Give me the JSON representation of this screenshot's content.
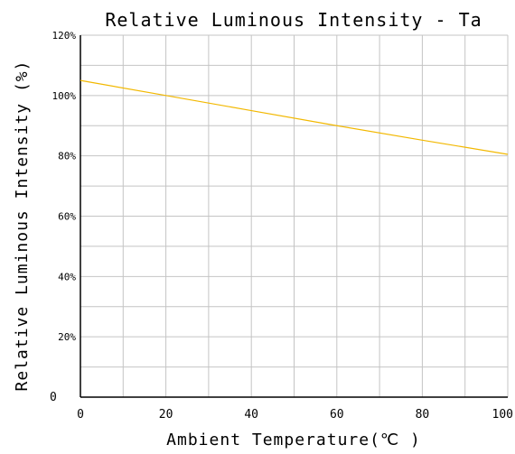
{
  "chart_data": {
    "type": "line",
    "title": "Relative Luminous Intensity - Ta",
    "xlabel": "Ambient Temperature(℃ )",
    "ylabel": "Relative Luminous Intensity (%)",
    "xlim": [
      0,
      100
    ],
    "ylim": [
      0,
      120
    ],
    "x_ticks": [
      0,
      10,
      20,
      30,
      40,
      50,
      60,
      70,
      80,
      90,
      100
    ],
    "x_tick_labels": [
      "0",
      "",
      "20",
      "",
      "40",
      "",
      "60",
      "",
      "80",
      "",
      "100"
    ],
    "y_ticks": [
      0,
      10,
      20,
      30,
      40,
      50,
      60,
      70,
      80,
      90,
      100,
      110,
      120
    ],
    "y_tick_labels": [
      "0",
      "",
      "20%",
      "",
      "40%",
      "",
      "60%",
      "",
      "80%",
      "",
      "100%",
      "",
      "120%"
    ],
    "grid": true,
    "series": [
      {
        "color": "#f2b800",
        "x": [
          0,
          20,
          40,
          60,
          80,
          100
        ],
        "y": [
          105,
          100,
          95,
          90,
          85.2,
          80.5
        ]
      }
    ]
  }
}
